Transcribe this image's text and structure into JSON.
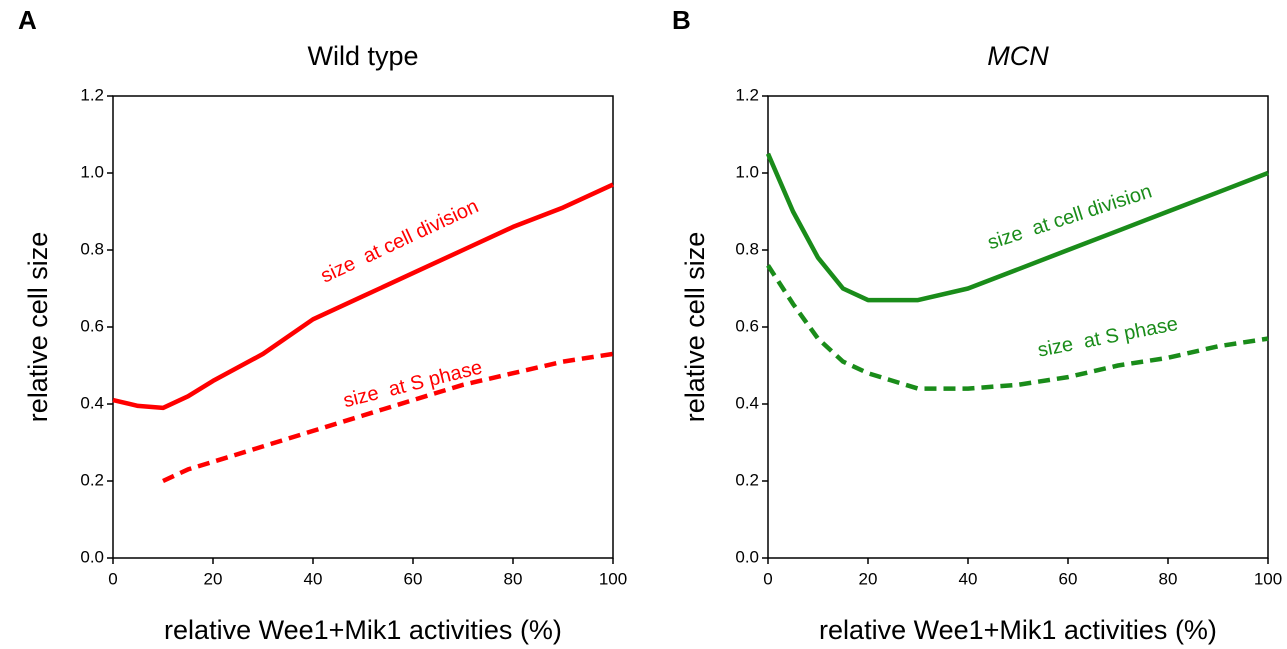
{
  "chart_data": [
    {
      "type": "line",
      "panel_label": "A",
      "title": "Wild type",
      "title_style": "normal",
      "x_label": "relative Wee1+Mik1 activities (%)",
      "y_label": "relative cell size",
      "x": [
        0,
        5,
        10,
        15,
        20,
        30,
        40,
        50,
        60,
        70,
        80,
        90,
        100
      ],
      "series": [
        {
          "name": "size  at cell division",
          "color": "#ff0000",
          "style": "solid",
          "values": [
            0.41,
            0.395,
            0.39,
            0.42,
            0.46,
            0.53,
            0.62,
            0.68,
            0.74,
            0.8,
            0.86,
            0.91,
            0.97
          ]
        },
        {
          "name": "size  at S phase",
          "color": "#ff0000",
          "style": "dashed",
          "values": [
            null,
            null,
            0.2,
            0.23,
            0.25,
            0.29,
            0.33,
            0.37,
            0.41,
            0.45,
            0.48,
            0.51,
            0.53
          ]
        }
      ],
      "xlim": [
        0,
        100
      ],
      "xticks": [
        0,
        20,
        40,
        60,
        80,
        100
      ],
      "ylim": [
        0,
        1.2
      ],
      "yticks": [
        {
          "value": 0,
          "label": "0.0"
        },
        {
          "value": 0.2,
          "label": "0.2"
        },
        {
          "value": 0.4,
          "label": "0.4"
        },
        {
          "value": 0.6,
          "label": "0.6"
        },
        {
          "value": 0.8,
          "label": "0.8"
        },
        {
          "value": 1,
          "label": "1.0"
        },
        {
          "value": 1.2,
          "label": "1.2"
        }
      ]
    },
    {
      "type": "line",
      "panel_label": "B",
      "title": "MCN",
      "title_style": "italic",
      "x_label": "relative Wee1+Mik1 activities (%)",
      "y_label": "relative cell size",
      "x": [
        0,
        5,
        10,
        15,
        20,
        30,
        40,
        50,
        60,
        70,
        80,
        90,
        100
      ],
      "series": [
        {
          "name": "size  at cell division",
          "color": "#1a8c1a",
          "style": "solid",
          "values": [
            1.05,
            0.9,
            0.78,
            0.7,
            0.67,
            0.67,
            0.7,
            0.75,
            0.8,
            0.85,
            0.9,
            0.95,
            1.0
          ]
        },
        {
          "name": "size  at S phase",
          "color": "#1a8c1a",
          "style": "dashed",
          "values": [
            0.76,
            0.66,
            0.57,
            0.51,
            0.48,
            0.44,
            0.44,
            0.45,
            0.47,
            0.5,
            0.52,
            0.55,
            0.57
          ]
        }
      ],
      "xlim": [
        0,
        100
      ],
      "xticks": [
        0,
        20,
        40,
        60,
        80,
        100
      ],
      "ylim": [
        0,
        1.2
      ],
      "yticks": [
        {
          "value": 0,
          "label": "0.0"
        },
        {
          "value": 0.2,
          "label": "0.2"
        },
        {
          "value": 0.4,
          "label": "0.4"
        },
        {
          "value": 0.6,
          "label": "0.6"
        },
        {
          "value": 0.8,
          "label": "0.8"
        },
        {
          "value": 1,
          "label": "1.0"
        },
        {
          "value": 1.2,
          "label": "1.2"
        }
      ]
    }
  ]
}
